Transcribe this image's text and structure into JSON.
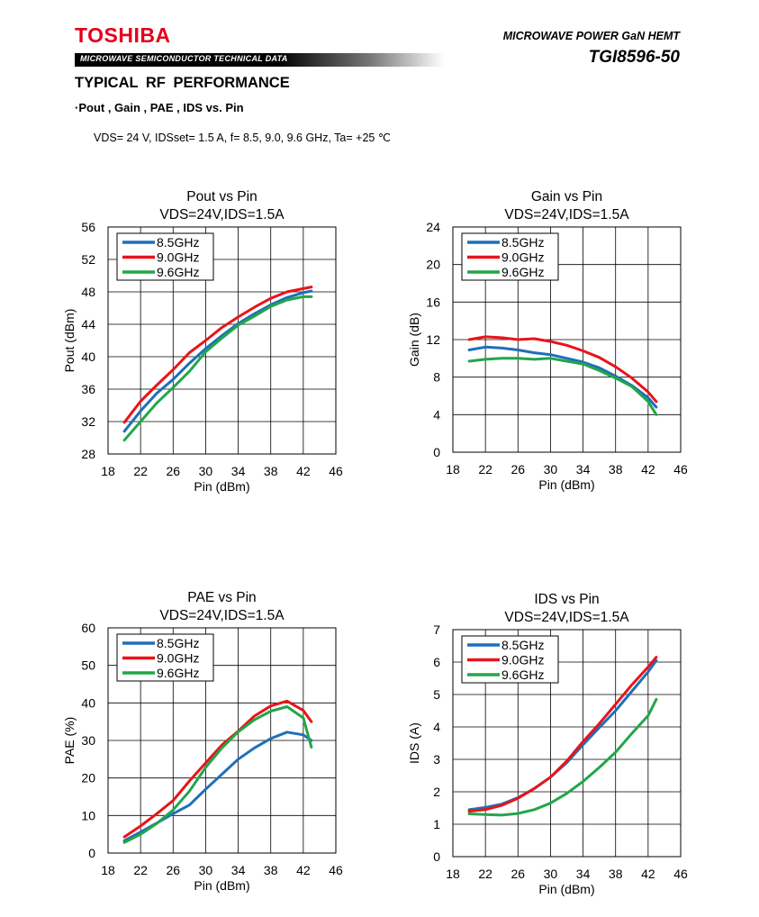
{
  "header": {
    "brand": "TOSHIBA",
    "banner_text": "MICROWAVE SEMICONDUCTOR TECHNICAL DATA",
    "product_type": "MICROWAVE POWER GaN HEMT",
    "part_number": "TGI8596-50",
    "brand_color": "#e3001b"
  },
  "section": {
    "title": "TYPICAL  RF  PERFORMANCE",
    "subtitle": "·Pout , Gain , PAE , IDS vs. Pin",
    "conditions": "VDS= 24 V, IDSset= 1.5 A, f= 8.5, 9.0, 9.6 GHz, Ta= +25 ℃"
  },
  "series_colors": [
    "#1f6fb8",
    "#e8141b",
    "#22a64a"
  ],
  "chart_data": [
    {
      "type": "line",
      "title": "Pout vs Pin",
      "subtitle": "VDS=24V,IDS=1.5A",
      "xlabel": "Pin (dBm)",
      "ylabel": "Pout (dBm)",
      "xlim": [
        18,
        46
      ],
      "ylim": [
        28,
        56
      ],
      "xticks": [
        18,
        22,
        26,
        30,
        34,
        38,
        42,
        46
      ],
      "yticks": [
        28,
        32,
        36,
        40,
        44,
        48,
        52,
        56
      ],
      "grid": true,
      "legend": "top-left",
      "x": [
        20,
        22,
        24,
        26,
        28,
        30,
        32,
        34,
        36,
        38,
        40,
        42,
        43
      ],
      "series": [
        {
          "name": "8.5GHz",
          "values": [
            30.8,
            33.3,
            35.5,
            37.2,
            39.2,
            41.0,
            42.6,
            44.1,
            45.3,
            46.4,
            47.3,
            47.9,
            48.1
          ]
        },
        {
          "name": "9.0GHz",
          "values": [
            31.9,
            34.5,
            36.5,
            38.4,
            40.5,
            42.0,
            43.6,
            44.9,
            46.1,
            47.2,
            48.0,
            48.4,
            48.6
          ]
        },
        {
          "name": "9.6GHz",
          "values": [
            29.7,
            32.0,
            34.3,
            36.2,
            38.2,
            40.6,
            42.3,
            43.9,
            45.0,
            46.2,
            47.0,
            47.4,
            47.4
          ]
        }
      ]
    },
    {
      "type": "line",
      "title": "Gain vs Pin",
      "subtitle": "VDS=24V,IDS=1.5A",
      "xlabel": "Pin (dBm)",
      "ylabel": "Gain (dB)",
      "xlim": [
        18,
        46
      ],
      "ylim": [
        0,
        24
      ],
      "xticks": [
        18,
        22,
        26,
        30,
        34,
        38,
        42,
        46
      ],
      "yticks": [
        0,
        4,
        8,
        12,
        16,
        20,
        24
      ],
      "grid": true,
      "legend": "top-left",
      "x": [
        20,
        22,
        24,
        26,
        28,
        30,
        32,
        34,
        36,
        38,
        40,
        42,
        43
      ],
      "series": [
        {
          "name": "8.5GHz",
          "values": [
            10.9,
            11.2,
            11.1,
            10.9,
            10.6,
            10.4,
            10.0,
            9.6,
            9.0,
            8.1,
            7.1,
            5.8,
            4.8
          ]
        },
        {
          "name": "9.0GHz",
          "values": [
            12.0,
            12.3,
            12.2,
            12.0,
            12.1,
            11.8,
            11.4,
            10.8,
            10.1,
            9.1,
            7.9,
            6.4,
            5.4
          ]
        },
        {
          "name": "9.6GHz",
          "values": [
            9.7,
            9.9,
            10.0,
            10.0,
            9.9,
            10.0,
            9.7,
            9.4,
            8.7,
            7.9,
            7.0,
            5.4,
            4.0
          ]
        }
      ]
    },
    {
      "type": "line",
      "title": "PAE vs Pin",
      "subtitle": "VDS=24V,IDS=1.5A",
      "xlabel": "Pin (dBm)",
      "ylabel": "PAE (%)",
      "xlim": [
        18,
        46
      ],
      "ylim": [
        0,
        60
      ],
      "xticks": [
        18,
        22,
        26,
        30,
        34,
        38,
        42,
        46
      ],
      "yticks": [
        0,
        10,
        20,
        30,
        40,
        50,
        60
      ],
      "grid": true,
      "legend": "top-left",
      "x": [
        20,
        22,
        24,
        26,
        28,
        30,
        32,
        34,
        36,
        38,
        40,
        42,
        43
      ],
      "series": [
        {
          "name": "8.5GHz",
          "values": [
            3.3,
            5.6,
            8.0,
            10.5,
            12.8,
            17.0,
            21.0,
            25.0,
            28.0,
            30.5,
            32.2,
            31.5,
            30.0
          ]
        },
        {
          "name": "9.0GHz",
          "values": [
            4.3,
            7.2,
            10.5,
            14.0,
            19.2,
            24.0,
            28.8,
            32.5,
            36.5,
            39.2,
            40.5,
            38.0,
            35.0
          ]
        },
        {
          "name": "9.6GHz",
          "values": [
            2.8,
            5.0,
            7.9,
            11.5,
            16.5,
            22.8,
            28.0,
            32.3,
            35.5,
            37.8,
            39.0,
            36.0,
            28.2
          ]
        }
      ]
    },
    {
      "type": "line",
      "title": "IDS vs Pin",
      "subtitle": "VDS=24V,IDS=1.5A",
      "xlabel": "Pin (dBm)",
      "ylabel": "IDS (A)",
      "xlim": [
        18,
        46
      ],
      "ylim": [
        0,
        7
      ],
      "xticks": [
        18,
        22,
        26,
        30,
        34,
        38,
        42,
        46
      ],
      "yticks": [
        0,
        1,
        2,
        3,
        4,
        5,
        6,
        7
      ],
      "grid": true,
      "legend": "top-left",
      "x": [
        20,
        22,
        24,
        26,
        28,
        30,
        32,
        34,
        36,
        38,
        40,
        42,
        43
      ],
      "series": [
        {
          "name": "8.5GHz",
          "values": [
            1.45,
            1.52,
            1.62,
            1.82,
            2.1,
            2.45,
            2.9,
            3.45,
            3.98,
            4.5,
            5.1,
            5.7,
            6.05
          ]
        },
        {
          "name": "9.0GHz",
          "values": [
            1.4,
            1.45,
            1.58,
            1.8,
            2.1,
            2.45,
            2.95,
            3.55,
            4.1,
            4.7,
            5.3,
            5.85,
            6.15
          ]
        },
        {
          "name": "9.6GHz",
          "values": [
            1.32,
            1.3,
            1.28,
            1.33,
            1.45,
            1.65,
            1.95,
            2.32,
            2.75,
            3.22,
            3.8,
            4.35,
            4.85
          ]
        }
      ]
    }
  ]
}
